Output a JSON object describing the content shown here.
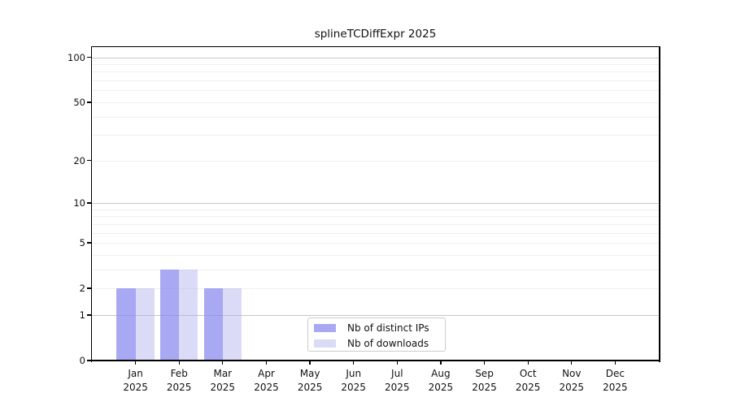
{
  "title": "splineTCDiffExpr 2025",
  "legend": {
    "items": [
      {
        "label": "Nb of distinct IPs",
        "color": "#8888ee",
        "alpha": 0.73
      },
      {
        "label": "Nb of downloads",
        "color": "#b0b0f0",
        "alpha": 0.45
      }
    ]
  },
  "chart_data": {
    "type": "bar",
    "title": "splineTCDiffExpr 2025",
    "categories": [
      "Jan",
      "Feb",
      "Mar",
      "Apr",
      "May",
      "Jun",
      "Jul",
      "Aug",
      "Sep",
      "Oct",
      "Nov",
      "Dec"
    ],
    "year_label": "2025",
    "series": [
      {
        "name": "Nb of distinct IPs",
        "color": "#8888ee",
        "alpha": 0.73,
        "values": [
          2,
          3,
          2,
          0,
          0,
          0,
          0,
          0,
          0,
          0,
          0,
          0
        ]
      },
      {
        "name": "Nb of downloads",
        "color": "#b0b0f0",
        "alpha": 0.45,
        "values": [
          2,
          3,
          2,
          0,
          0,
          0,
          0,
          0,
          0,
          0,
          0,
          0
        ]
      }
    ],
    "yscale": "log1p",
    "ylim": [
      0,
      116
    ],
    "y_tick_values": [
      0,
      1,
      2,
      5,
      10,
      20,
      50,
      100
    ],
    "y_tick_labels": [
      "0",
      "1",
      "2",
      "5",
      "10",
      "20",
      "50",
      "100"
    ],
    "grid_major_values": [
      1,
      10,
      100
    ],
    "grid_minor_values": [
      2,
      3,
      4,
      5,
      6,
      7,
      8,
      9,
      20,
      30,
      40,
      50,
      60,
      70,
      80,
      90
    ],
    "legend_position": "lower center",
    "xlabel": "",
    "ylabel": ""
  },
  "colors": {
    "axis": "#000000",
    "grid_major": "#c6c6c6",
    "grid_minor": "#f0f0f0",
    "background": "#ffffff",
    "text": "#111111"
  }
}
